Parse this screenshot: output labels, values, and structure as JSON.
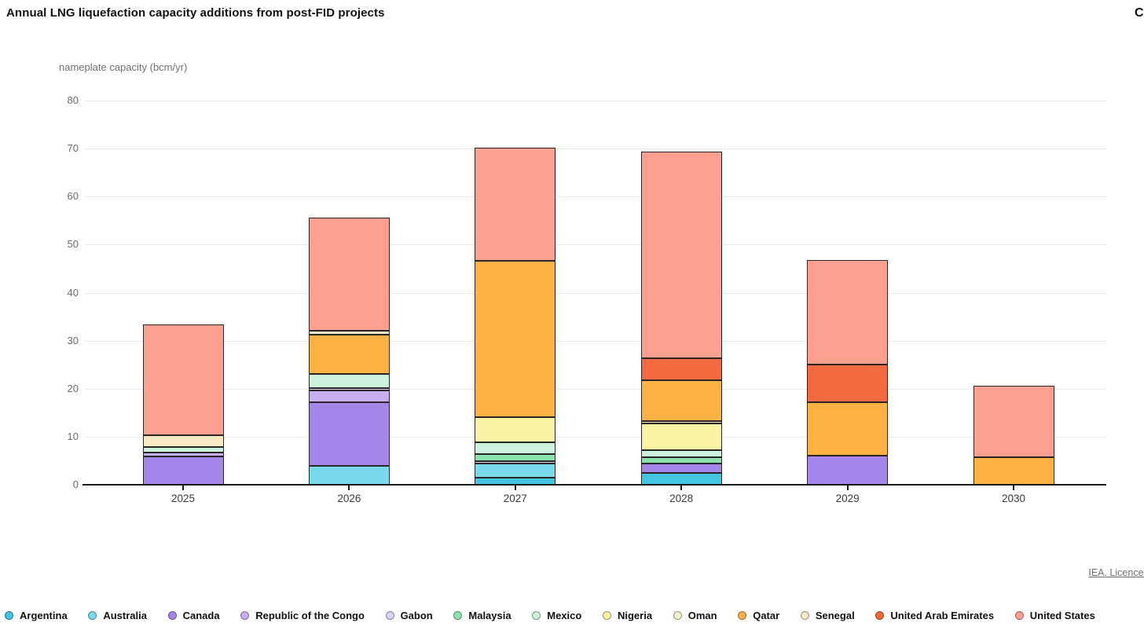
{
  "header": {
    "title": "Annual LNG liquefaction capacity additions from post-FID projects",
    "top_right_label": "C"
  },
  "footer": {
    "licence_text": "IEA. Licence:"
  },
  "chart_data": {
    "type": "bar",
    "stacked": true,
    "title": "Annual LNG liquefaction capacity additions from post-FID projects",
    "xlabel": "",
    "ylabel": "nameplate capacity (bcm/yr)",
    "ylim": [
      0,
      80
    ],
    "ytick_step": 10,
    "grid": true,
    "legend_position": "bottom",
    "categories": [
      "2025",
      "2026",
      "2027",
      "2028",
      "2029",
      "2030"
    ],
    "series": [
      {
        "name": "Argentina",
        "color": "#41c5e0",
        "values": [
          0,
          0,
          1.4,
          2.5,
          0,
          0
        ]
      },
      {
        "name": "Australia",
        "color": "#79d9eb",
        "values": [
          0,
          3.9,
          3.0,
          0,
          0,
          0
        ]
      },
      {
        "name": "Canada",
        "color": "#a486e9",
        "values": [
          5.9,
          13.3,
          0,
          1.9,
          6.0,
          0
        ]
      },
      {
        "name": "Republic of the Congo",
        "color": "#c8aff1",
        "values": [
          0.8,
          2.5,
          0,
          0,
          0,
          0
        ]
      },
      {
        "name": "Gabon",
        "color": "#ded0f7",
        "values": [
          0,
          0.4,
          0.5,
          0,
          0,
          0
        ]
      },
      {
        "name": "Malaysia",
        "color": "#8be4ad",
        "values": [
          0,
          0,
          1.5,
          1.4,
          0,
          0
        ]
      },
      {
        "name": "Mexico",
        "color": "#cbf2db",
        "values": [
          1.2,
          2.9,
          2.4,
          1.4,
          0,
          0
        ]
      },
      {
        "name": "Nigeria",
        "color": "#f8f4a3",
        "values": [
          0,
          0,
          5.2,
          5.5,
          0,
          0
        ]
      },
      {
        "name": "Oman",
        "color": "#f6f2cf",
        "values": [
          0,
          0,
          0,
          0.5,
          0,
          0
        ]
      },
      {
        "name": "Qatar",
        "color": "#fbb144",
        "values": [
          0,
          8.2,
          32.6,
          8.5,
          11.1,
          5.8
        ]
      },
      {
        "name": "Senegal",
        "color": "#f8e9c5",
        "values": [
          2.4,
          0.8,
          0,
          0,
          0,
          0
        ]
      },
      {
        "name": "United Arab Emirates",
        "color": "#f4693d",
        "values": [
          0,
          0,
          0,
          4.6,
          8.0,
          0
        ]
      },
      {
        "name": "United States",
        "color": "#fb9f90",
        "values": [
          23.0,
          23.6,
          23.6,
          43.0,
          21.7,
          14.8
        ]
      }
    ],
    "totals": [
      33.3,
      55.6,
      70.2,
      69.3,
      46.8,
      20.6
    ]
  }
}
